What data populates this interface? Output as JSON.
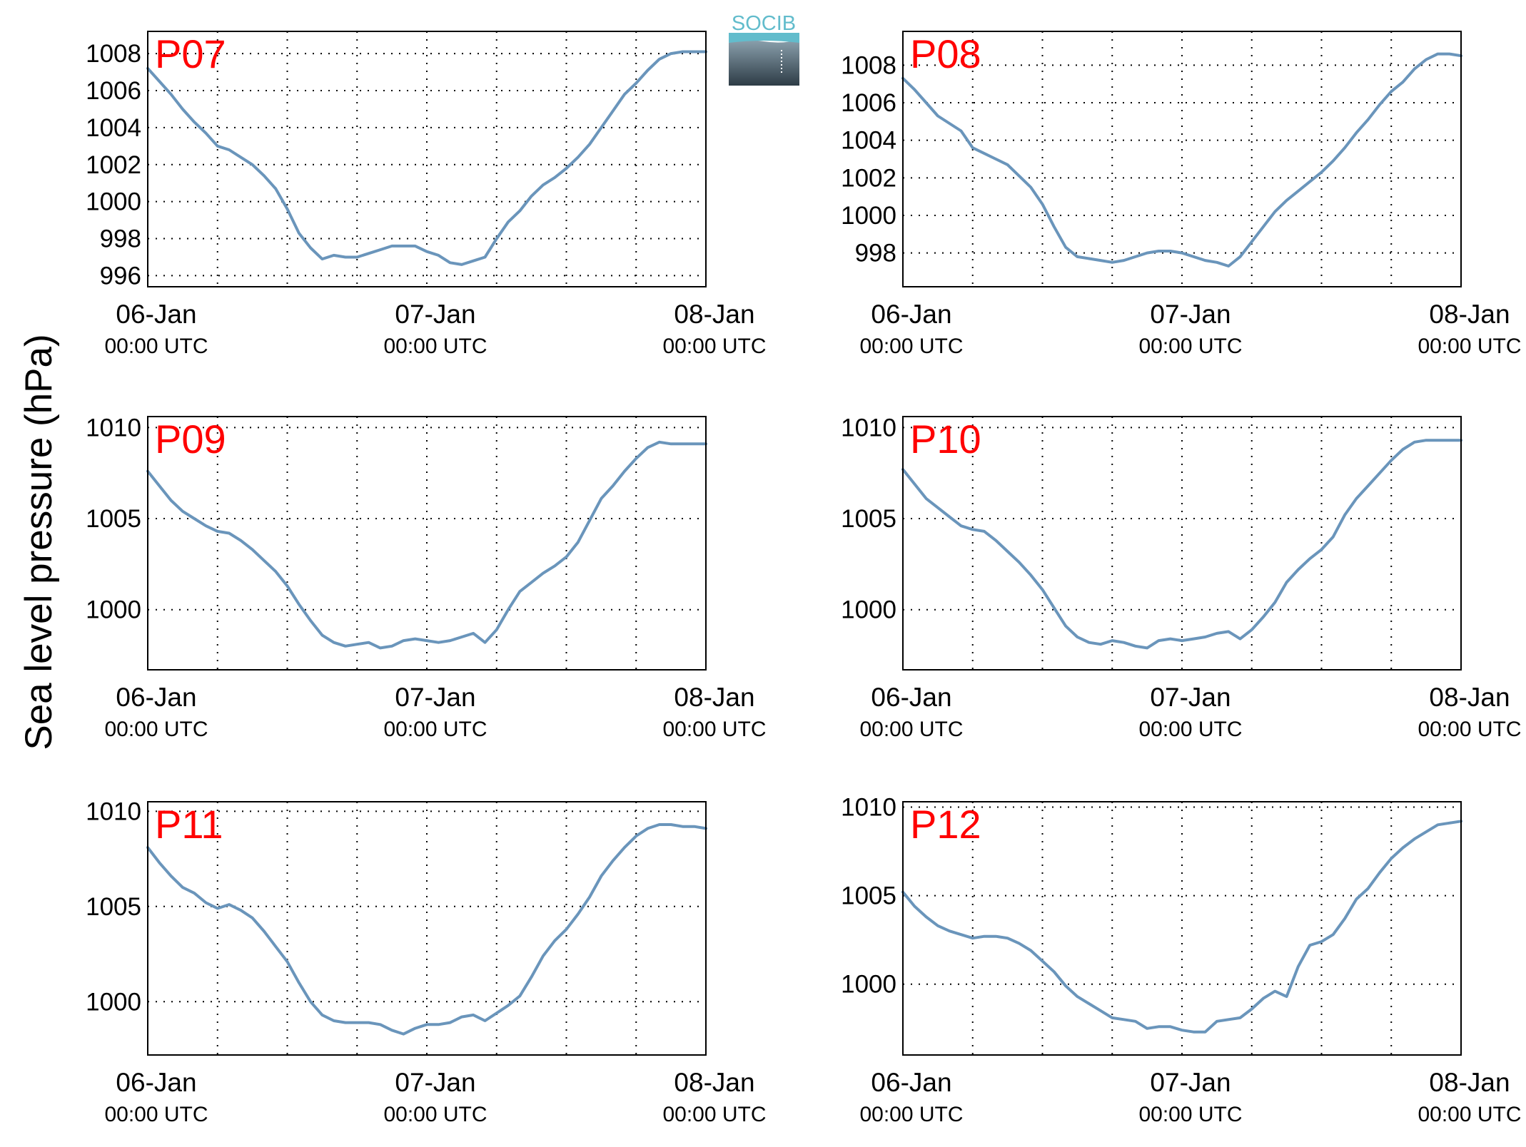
{
  "figure": {
    "ylabel": "Sea level pressure (hPa)",
    "logo_text": "SOCIB",
    "line_color": "#6a95bb",
    "station_label_color": "#ff0000",
    "grid": "dotted"
  },
  "chart_data": [
    {
      "type": "line",
      "station": "P07",
      "xlabels": [
        {
          "day": "06-Jan",
          "time": "00:00 UTC"
        },
        {
          "day": "07-Jan",
          "time": "00:00 UTC"
        },
        {
          "day": "08-Jan",
          "time": "00:00 UTC"
        }
      ],
      "xlim": [
        0,
        48
      ],
      "ylim": [
        995.4,
        1009.2
      ],
      "yticks": [
        996,
        998,
        1000,
        1002,
        1004,
        1006,
        1008
      ],
      "series": [
        {
          "x": [
            0,
            1,
            2,
            3,
            4,
            5,
            6,
            7,
            8,
            9,
            10,
            11,
            12,
            13,
            14,
            15,
            16,
            17,
            18,
            19,
            20,
            21,
            22,
            23,
            24,
            25,
            26,
            27,
            28,
            29,
            30,
            31,
            32,
            33,
            34,
            35,
            36,
            37,
            38,
            39,
            40,
            41,
            42,
            43,
            44,
            45,
            46,
            47,
            48
          ],
          "values": [
            1007.2,
            1006.5,
            1005.8,
            1005.0,
            1004.3,
            1003.7,
            1003.0,
            1002.8,
            1002.4,
            1002.0,
            1001.4,
            1000.7,
            999.6,
            998.3,
            997.5,
            996.9,
            997.1,
            997.0,
            997.0,
            997.2,
            997.4,
            997.6,
            997.6,
            997.6,
            997.3,
            997.1,
            996.7,
            996.6,
            996.8,
            997.0,
            998.0,
            998.9,
            999.5,
            1000.3,
            1000.9,
            1001.3,
            1001.8,
            1002.4,
            1003.1,
            1004.0,
            1004.9,
            1005.8,
            1006.4,
            1007.1,
            1007.7,
            1008.0,
            1008.1,
            1008.1,
            1008.1
          ]
        }
      ]
    },
    {
      "type": "line",
      "station": "P08",
      "xlabels": [
        {
          "day": "06-Jan",
          "time": "00:00 UTC"
        },
        {
          "day": "07-Jan",
          "time": "00:00 UTC"
        },
        {
          "day": "08-Jan",
          "time": "00:00 UTC"
        }
      ],
      "xlim": [
        0,
        48
      ],
      "ylim": [
        996.2,
        1009.8
      ],
      "yticks": [
        998,
        1000,
        1002,
        1004,
        1006,
        1008
      ],
      "series": [
        {
          "x": [
            0,
            1,
            2,
            3,
            4,
            5,
            6,
            7,
            8,
            9,
            10,
            11,
            12,
            13,
            14,
            15,
            16,
            17,
            18,
            19,
            20,
            21,
            22,
            23,
            24,
            25,
            26,
            27,
            28,
            29,
            30,
            31,
            32,
            33,
            34,
            35,
            36,
            37,
            38,
            39,
            40,
            41,
            42,
            43,
            44,
            45,
            46,
            47,
            48
          ],
          "values": [
            1007.3,
            1006.7,
            1006.0,
            1005.3,
            1004.9,
            1004.5,
            1003.6,
            1003.3,
            1003.0,
            1002.7,
            1002.1,
            1001.5,
            1000.6,
            999.4,
            998.3,
            997.8,
            997.7,
            997.6,
            997.5,
            997.6,
            997.8,
            998.0,
            998.1,
            998.1,
            998.0,
            997.8,
            997.6,
            997.5,
            997.3,
            997.8,
            998.6,
            999.4,
            1000.2,
            1000.8,
            1001.3,
            1001.8,
            1002.3,
            1002.9,
            1003.6,
            1004.4,
            1005.1,
            1005.9,
            1006.6,
            1007.1,
            1007.8,
            1008.3,
            1008.6,
            1008.6,
            1008.5
          ]
        }
      ]
    },
    {
      "type": "line",
      "station": "P09",
      "xlabels": [
        {
          "day": "06-Jan",
          "time": "00:00 UTC"
        },
        {
          "day": "07-Jan",
          "time": "00:00 UTC"
        },
        {
          "day": "08-Jan",
          "time": "00:00 UTC"
        }
      ],
      "xlim": [
        0,
        48
      ],
      "ylim": [
        996.7,
        1010.6
      ],
      "yticks": [
        1000,
        1005,
        1010
      ],
      "series": [
        {
          "x": [
            0,
            1,
            2,
            3,
            4,
            5,
            6,
            7,
            8,
            9,
            10,
            11,
            12,
            13,
            14,
            15,
            16,
            17,
            18,
            19,
            20,
            21,
            22,
            23,
            24,
            25,
            26,
            27,
            28,
            29,
            30,
            31,
            32,
            33,
            34,
            35,
            36,
            37,
            38,
            39,
            40,
            41,
            42,
            43,
            44,
            45,
            46,
            47,
            48
          ],
          "values": [
            1007.6,
            1006.8,
            1006.0,
            1005.4,
            1005.0,
            1004.6,
            1004.3,
            1004.2,
            1003.8,
            1003.3,
            1002.7,
            1002.1,
            1001.3,
            1000.3,
            999.4,
            998.6,
            998.2,
            998.0,
            998.1,
            998.2,
            997.9,
            998.0,
            998.3,
            998.4,
            998.3,
            998.2,
            998.3,
            998.5,
            998.7,
            998.2,
            998.9,
            1000.0,
            1001.0,
            1001.5,
            1002.0,
            1002.4,
            1002.9,
            1003.7,
            1004.9,
            1006.1,
            1006.8,
            1007.6,
            1008.3,
            1008.9,
            1009.2,
            1009.1,
            1009.1,
            1009.1,
            1009.1
          ]
        }
      ]
    },
    {
      "type": "line",
      "station": "P10",
      "xlabels": [
        {
          "day": "06-Jan",
          "time": "00:00 UTC"
        },
        {
          "day": "07-Jan",
          "time": "00:00 UTC"
        },
        {
          "day": "08-Jan",
          "time": "00:00 UTC"
        }
      ],
      "xlim": [
        0,
        48
      ],
      "ylim": [
        996.7,
        1010.6
      ],
      "yticks": [
        1000,
        1005,
        1010
      ],
      "series": [
        {
          "x": [
            0,
            1,
            2,
            3,
            4,
            5,
            6,
            7,
            8,
            9,
            10,
            11,
            12,
            13,
            14,
            15,
            16,
            17,
            18,
            19,
            20,
            21,
            22,
            23,
            24,
            25,
            26,
            27,
            28,
            29,
            30,
            31,
            32,
            33,
            34,
            35,
            36,
            37,
            38,
            39,
            40,
            41,
            42,
            43,
            44,
            45,
            46,
            47,
            48
          ],
          "values": [
            1007.7,
            1006.9,
            1006.1,
            1005.6,
            1005.1,
            1004.6,
            1004.4,
            1004.3,
            1003.8,
            1003.2,
            1002.6,
            1001.9,
            1001.1,
            1000.1,
            999.1,
            998.5,
            998.2,
            998.1,
            998.3,
            998.2,
            998.0,
            997.9,
            998.3,
            998.4,
            998.3,
            998.4,
            998.5,
            998.7,
            998.8,
            998.4,
            998.9,
            999.6,
            1000.4,
            1001.5,
            1002.2,
            1002.8,
            1003.3,
            1004.0,
            1005.2,
            1006.1,
            1006.8,
            1007.5,
            1008.2,
            1008.8,
            1009.2,
            1009.3,
            1009.3,
            1009.3,
            1009.3
          ]
        }
      ]
    },
    {
      "type": "line",
      "station": "P11",
      "xlabels": [
        {
          "day": "06-Jan",
          "time": "00:00 UTC"
        },
        {
          "day": "07-Jan",
          "time": "00:00 UTC"
        },
        {
          "day": "08-Jan",
          "time": "00:00 UTC"
        }
      ],
      "xlim": [
        0,
        48
      ],
      "ylim": [
        997.2,
        1010.5
      ],
      "yticks": [
        1000,
        1005,
        1010
      ],
      "series": [
        {
          "x": [
            0,
            1,
            2,
            3,
            4,
            5,
            6,
            7,
            8,
            9,
            10,
            11,
            12,
            13,
            14,
            15,
            16,
            17,
            18,
            19,
            20,
            21,
            22,
            23,
            24,
            25,
            26,
            27,
            28,
            29,
            30,
            31,
            32,
            33,
            34,
            35,
            36,
            37,
            38,
            39,
            40,
            41,
            42,
            43,
            44,
            45,
            46,
            47,
            48
          ],
          "values": [
            1008.1,
            1007.3,
            1006.6,
            1006.0,
            1005.7,
            1005.2,
            1004.9,
            1005.1,
            1004.8,
            1004.4,
            1003.7,
            1002.9,
            1002.1,
            1001.0,
            1000.0,
            999.3,
            999.0,
            998.9,
            998.9,
            998.9,
            998.8,
            998.5,
            998.3,
            998.6,
            998.8,
            998.8,
            998.9,
            999.2,
            999.3,
            999.0,
            999.4,
            999.8,
            1000.3,
            1001.3,
            1002.4,
            1003.2,
            1003.8,
            1004.6,
            1005.5,
            1006.6,
            1007.4,
            1008.1,
            1008.7,
            1009.1,
            1009.3,
            1009.3,
            1009.2,
            1009.2,
            1009.1
          ]
        }
      ]
    },
    {
      "type": "line",
      "station": "P12",
      "xlabels": [
        {
          "day": "06-Jan",
          "time": "00:00 UTC"
        },
        {
          "day": "07-Jan",
          "time": "00:00 UTC"
        },
        {
          "day": "08-Jan",
          "time": "00:00 UTC"
        }
      ],
      "xlim": [
        0,
        48
      ],
      "ylim": [
        996.0,
        1010.3
      ],
      "yticks": [
        1000,
        1005,
        1010
      ],
      "series": [
        {
          "x": [
            0,
            1,
            2,
            3,
            4,
            5,
            6,
            7,
            8,
            9,
            10,
            11,
            12,
            13,
            14,
            15,
            16,
            17,
            18,
            19,
            20,
            21,
            22,
            23,
            24,
            25,
            26,
            27,
            28,
            29,
            30,
            31,
            32,
            33,
            34,
            35,
            36,
            37,
            38,
            39,
            40,
            41,
            42,
            43,
            44,
            45,
            46,
            47,
            48
          ],
          "values": [
            1005.2,
            1004.4,
            1003.8,
            1003.3,
            1003.0,
            1002.8,
            1002.6,
            1002.7,
            1002.7,
            1002.6,
            1002.3,
            1001.9,
            1001.3,
            1000.7,
            999.9,
            999.3,
            998.9,
            998.5,
            998.1,
            998.0,
            997.9,
            997.5,
            997.6,
            997.6,
            997.4,
            997.3,
            997.3,
            997.9,
            998.0,
            998.1,
            998.6,
            999.2,
            999.6,
            999.3,
            1001.0,
            1002.2,
            1002.4,
            1002.8,
            1003.7,
            1004.8,
            1005.4,
            1006.3,
            1007.1,
            1007.7,
            1008.2,
            1008.6,
            1009.0,
            1009.1,
            1009.2
          ]
        }
      ]
    }
  ]
}
